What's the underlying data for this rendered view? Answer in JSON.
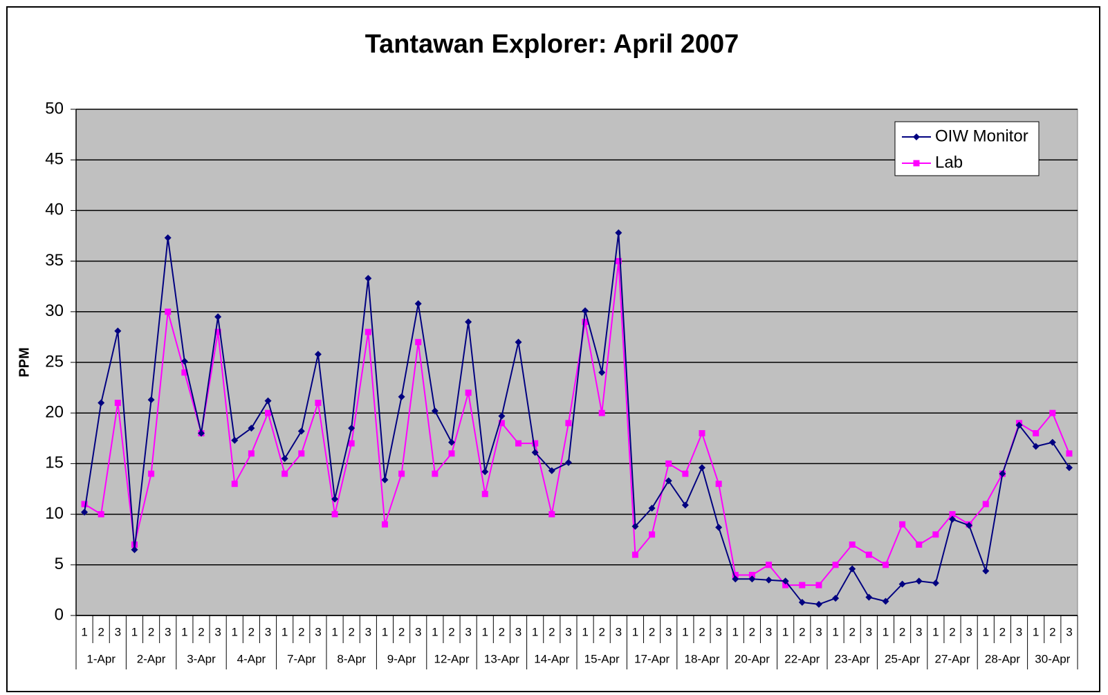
{
  "chart_data": {
    "type": "line",
    "title": "Tantawan Explorer: April 2007",
    "y_label": "PPM",
    "categories": [
      "1",
      "2",
      "3",
      "1",
      "2",
      "3",
      "1",
      "2",
      "3",
      "1",
      "2",
      "3",
      "1",
      "2",
      "3",
      "1",
      "2",
      "3",
      "1",
      "2",
      "3",
      "1",
      "2",
      "3",
      "1",
      "2",
      "3",
      "1",
      "2",
      "3",
      "1",
      "2",
      "3",
      "1",
      "2",
      "3",
      "1",
      "2",
      "3",
      "1",
      "2",
      "3",
      "1",
      "2",
      "3",
      "1",
      "2",
      "3",
      "1",
      "2",
      "3",
      "1",
      "2",
      "3",
      "1",
      "2",
      "3",
      "1",
      "2",
      "3"
    ],
    "category_groups": [
      "1-Apr",
      "2-Apr",
      "3-Apr",
      "4-Apr",
      "7-Apr",
      "8-Apr",
      "9-Apr",
      "12-Apr",
      "13-Apr",
      "14-Apr",
      "15-Apr",
      "17-Apr",
      "18-Apr",
      "20-Apr",
      "22-Apr",
      "23-Apr",
      "25-Apr",
      "27-Apr",
      "28-Apr",
      "30-Apr"
    ],
    "series": [
      {
        "name": "OIW Monitor",
        "color": "#000080",
        "marker": "diamond",
        "values": [
          10.2,
          21,
          28.1,
          6.5,
          21.3,
          37.3,
          25.1,
          18,
          29.5,
          17.3,
          18.5,
          21.2,
          15.5,
          18.2,
          25.8,
          11.5,
          18.5,
          33.3,
          13.4,
          21.6,
          30.8,
          20.2,
          17.1,
          29,
          14.2,
          19.7,
          27,
          16.1,
          14.3,
          15.1,
          30.1,
          24,
          37.8,
          8.8,
          10.6,
          13.3,
          10.9,
          14.6,
          8.7,
          3.6,
          3.6,
          3.5,
          3.4,
          1.3,
          1.1,
          1.7,
          4.6,
          1.8,
          1.4,
          3.1,
          3.4,
          3.2,
          9.5,
          8.9,
          4.4,
          14,
          18.8,
          16.7,
          17.1,
          14.6
        ]
      },
      {
        "name": "Lab",
        "color": "#ff00ff",
        "marker": "square",
        "values": [
          11,
          10,
          21,
          7,
          14,
          30,
          24,
          18,
          28,
          13,
          16,
          20,
          14,
          16,
          21,
          10,
          17,
          28,
          9,
          14,
          27,
          14,
          16,
          22,
          12,
          19,
          17,
          17,
          10,
          19,
          29,
          20,
          35,
          6,
          8,
          15,
          14,
          18,
          13,
          4,
          4,
          5,
          3,
          3,
          3,
          5,
          7,
          6,
          5,
          9,
          7,
          8,
          10,
          9,
          11,
          14,
          19,
          18,
          20,
          16
        ]
      }
    ],
    "ylim": [
      0,
      50
    ],
    "yticks": [
      0,
      5,
      10,
      15,
      20,
      25,
      30,
      35,
      40,
      45,
      50
    ],
    "grid": true,
    "plot_background": "#c0c0c0",
    "legend": "upper right"
  }
}
